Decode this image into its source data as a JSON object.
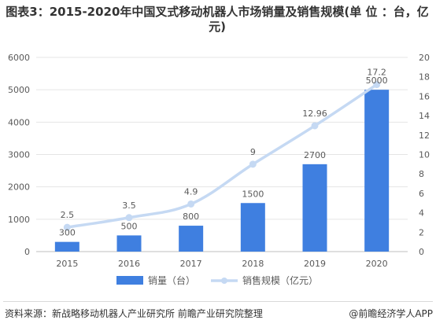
{
  "page": {
    "title": "图表3：2015-2020年中国叉式移动机器人市场销量及销售规模(单 位 ：台，亿元)",
    "source": "资料来源：新战略移动机器人产业研究所 前瞻产业研究院整理",
    "brand": "@前瞻经济学人APP"
  },
  "colors": {
    "bar": "#3f7fe0",
    "line": "#c5d9f3",
    "marker": "#c5d9f3",
    "grid": "#e5e5e5",
    "axis": "#bfbfbf",
    "text": "#595959"
  },
  "chart_data": {
    "type": "bar",
    "categories": [
      "2015",
      "2016",
      "2017",
      "2018",
      "2019",
      "2020"
    ],
    "series": [
      {
        "name": "销量（台）",
        "type": "bar",
        "axis": "left",
        "values": [
          300,
          500,
          800,
          1500,
          2700,
          5000
        ],
        "labels": [
          "300",
          "500",
          "800",
          "1500",
          "2700",
          "5000"
        ]
      },
      {
        "name": "销售规模（亿元）",
        "type": "line",
        "axis": "right",
        "values": [
          2.5,
          3.5,
          4.9,
          9,
          12.96,
          17.2
        ],
        "labels": [
          "2.5",
          "3.5",
          "4.9",
          "9",
          "12.96",
          "17.2"
        ]
      }
    ],
    "y_left": {
      "min": 0,
      "max": 6000,
      "ticks": [
        "0",
        "1000",
        "2000",
        "3000",
        "4000",
        "5000",
        "6000"
      ]
    },
    "y_right": {
      "min": 0,
      "max": 20,
      "ticks": [
        "0",
        "2",
        "4",
        "6",
        "8",
        "10",
        "12",
        "14",
        "16",
        "18",
        "20"
      ]
    },
    "legend_position": "bottom",
    "grid": true
  }
}
